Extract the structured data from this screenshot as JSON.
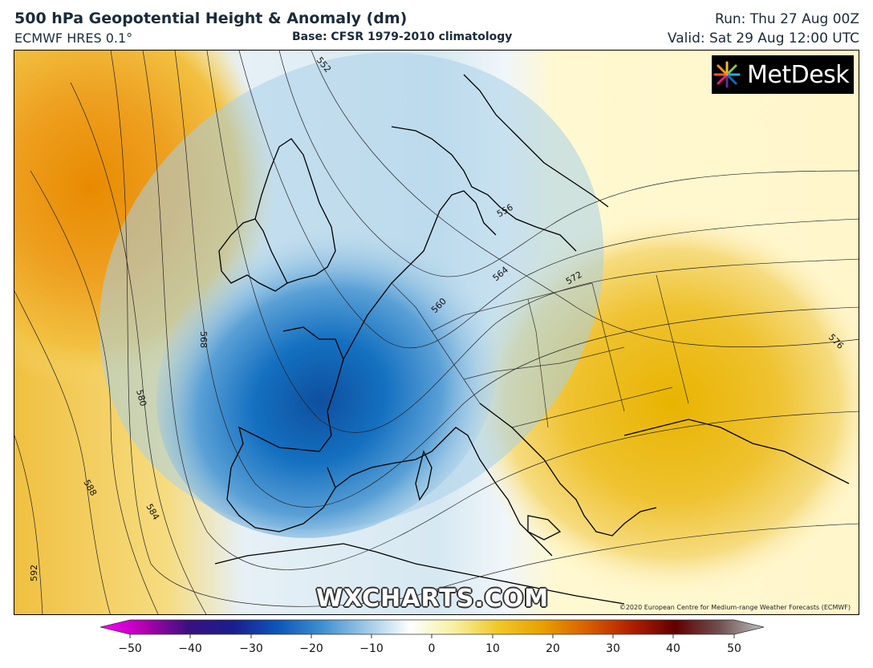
{
  "header": {
    "title": "500 hPa Geopotential Height & Anomaly (dm)",
    "model": "ECMWF HRES 0.1°",
    "base": "Base: CFSR 1979-2010 climatology",
    "run": "Run: Thu 27 Aug 00Z",
    "valid": "Valid: Sat 29 Aug 12:00 UTC"
  },
  "logo": {
    "text": "MetDesk"
  },
  "watermark": "WXCHARTS.COM",
  "copyright": "©2020 European Centre for Medium-range Weather Forecasts (ECMWF)",
  "contour_labels": [
    "552",
    "556",
    "560",
    "564",
    "568",
    "572",
    "576",
    "580",
    "584",
    "588",
    "592"
  ],
  "colorbar": {
    "ticks": [
      "−50",
      "−40",
      "−30",
      "−20",
      "−10",
      "0",
      "10",
      "20",
      "30",
      "40",
      "50"
    ],
    "colors": [
      "#ff00ff",
      "#b000b0",
      "#3a1080",
      "#1a1e8c",
      "#0d55b8",
      "#3d8fd0",
      "#9cc8e6",
      "#ffffff",
      "#f8f0a0",
      "#f0c828",
      "#e8a000",
      "#d86000",
      "#b02000",
      "#600000",
      "#705050",
      "#c0c0c0"
    ]
  },
  "map": {
    "colors": {
      "sea_dark": "#1160b0",
      "sea_mid": "#6aa8d8",
      "light": "#d6e8f2",
      "pale": "#fff8d0",
      "yellow": "#f2cc4a",
      "orange": "#ee9a10",
      "coast": "#000000"
    }
  }
}
